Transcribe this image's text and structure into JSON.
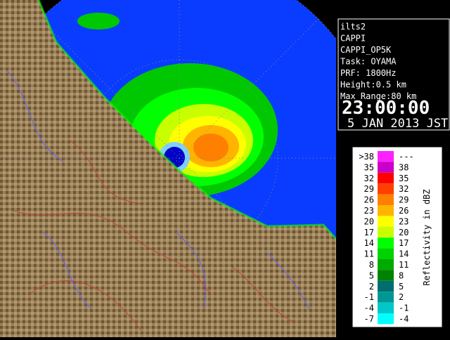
{
  "info": {
    "lines": [
      "ilts2",
      "CAPPI",
      "CAPPI_OP5K",
      "Task: OYAMA",
      "PRF: 1800Hz",
      "Height:0.5 km",
      "Max Range:80 km"
    ],
    "time": "23:00:00",
    "date": "5 JAN 2013 JST"
  },
  "legend": {
    "title": "Reflectivity in dBZ",
    "rows": [
      {
        "from": ">38",
        "to": "---",
        "color": "#ff20ff"
      },
      {
        "from": "35",
        "to": "38",
        "color": "#c800c8"
      },
      {
        "from": "32",
        "to": "35",
        "color": "#ff0000"
      },
      {
        "from": "29",
        "to": "32",
        "color": "#ff4000"
      },
      {
        "from": "26",
        "to": "29",
        "color": "#ff8000"
      },
      {
        "from": "23",
        "to": "26",
        "color": "#ffb400"
      },
      {
        "from": "20",
        "to": "23",
        "color": "#ffff00"
      },
      {
        "from": "17",
        "to": "20",
        "color": "#c8ff00"
      },
      {
        "from": "14",
        "to": "17",
        "color": "#00ff00"
      },
      {
        "from": "11",
        "to": "14",
        "color": "#00d200"
      },
      {
        "from": "8",
        "to": "11",
        "color": "#00aa00"
      },
      {
        "from": "5",
        "to": "8",
        "color": "#008200"
      },
      {
        "from": "2",
        "to": "5",
        "color": "#006e6e"
      },
      {
        "from": "-1",
        "to": "2",
        "color": "#009696"
      },
      {
        "from": "-4",
        "to": "-1",
        "color": "#00c8c8"
      },
      {
        "from": "-7",
        "to": "-4",
        "color": "#00ffff"
      }
    ]
  }
}
